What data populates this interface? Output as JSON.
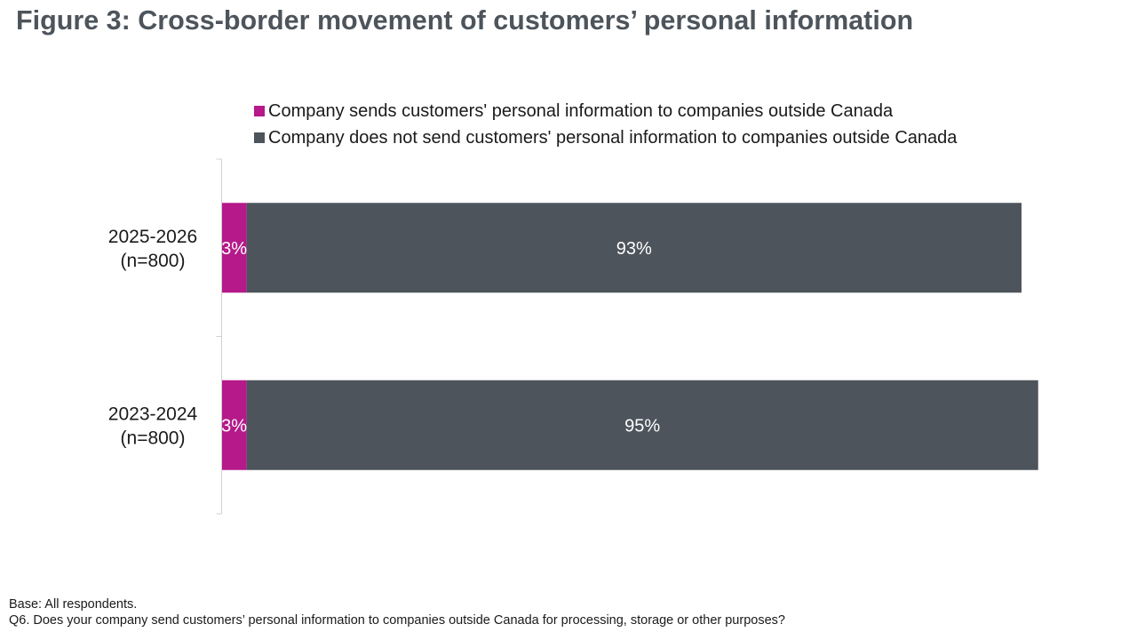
{
  "title": "Figure 3: Cross-border movement of customers’ personal information",
  "chart_data": {
    "type": "bar",
    "orientation": "horizontal",
    "stacked": true,
    "categories": [
      {
        "label_line1": "2025-2026",
        "label_line2": "(n=800)"
      },
      {
        "label_line1": "2023-2024",
        "label_line2": "(n=800)"
      }
    ],
    "series": [
      {
        "name": "Company sends customers' personal information to companies outside Canada",
        "color": "#b5198a",
        "values": [
          3,
          3
        ],
        "labels": [
          "3%",
          "3%"
        ]
      },
      {
        "name": "Company does not send customers' personal information to companies outside Canada",
        "color": "#4d545b",
        "values": [
          93,
          95
        ],
        "labels": [
          "93%",
          "95%"
        ]
      }
    ],
    "xlim": [
      0,
      100
    ],
    "legend_position": "top",
    "grid": false,
    "axis_color": "#d0d0d0",
    "data_label_color": "#ffffff"
  },
  "footnote": {
    "base": "Base: All respondents.",
    "question": "Q6. Does your company send customers’ personal information to companies outside Canada for processing, storage or other purposes?"
  }
}
